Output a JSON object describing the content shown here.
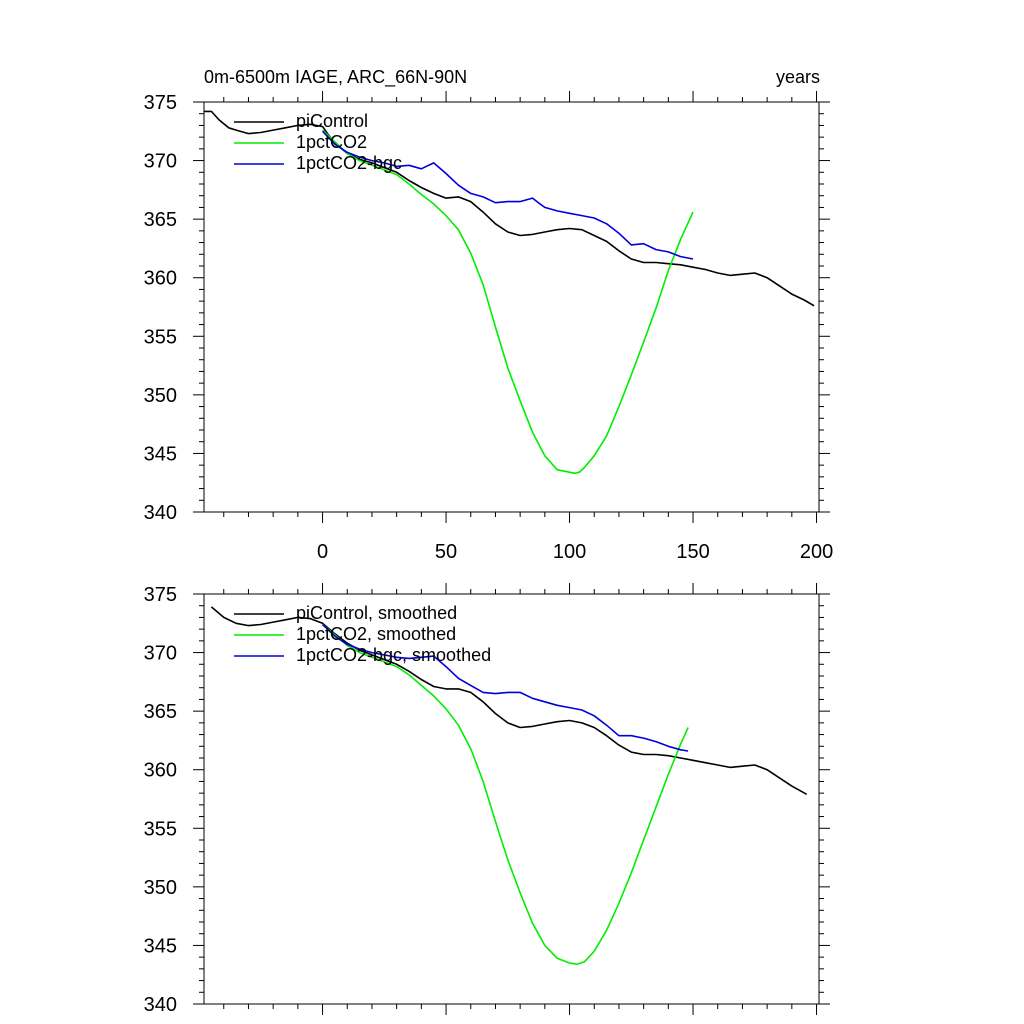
{
  "chart_data": [
    {
      "type": "line",
      "title": "0m-6500m IAGE, ARC_66N-90N",
      "title_right": "years",
      "xlim": [
        -48,
        201
      ],
      "ylim": [
        340,
        375
      ],
      "xticks": [
        0,
        50,
        100,
        150,
        200
      ],
      "xtick_labels": [
        "0",
        "50",
        "100",
        "150",
        "200"
      ],
      "yticks": [
        340,
        345,
        350,
        355,
        360,
        365,
        370,
        375
      ],
      "ytick_labels": [
        "340",
        "345",
        "350",
        "355",
        "360",
        "365",
        "370",
        "375"
      ],
      "grid": false,
      "legend_position": "top-left",
      "series": [
        {
          "name": "piControl",
          "color": "#000000",
          "x": [
            -48,
            -45,
            -42,
            -38,
            -35,
            -30,
            -25,
            -20,
            -15,
            -10,
            -5,
            0,
            2,
            5,
            10,
            15,
            20,
            25,
            30,
            35,
            40,
            45,
            50,
            55,
            60,
            65,
            70,
            75,
            80,
            85,
            90,
            95,
            100,
            105,
            110,
            115,
            120,
            125,
            130,
            135,
            140,
            145,
            150,
            155,
            160,
            165,
            170,
            175,
            180,
            185,
            190,
            195,
            199
          ],
          "y": [
            374.2,
            374.2,
            373.5,
            372.8,
            372.6,
            372.3,
            372.4,
            372.6,
            372.8,
            373.0,
            373.1,
            372.9,
            372.3,
            371.5,
            370.6,
            370.1,
            369.8,
            369.4,
            369.0,
            368.3,
            367.7,
            367.2,
            366.8,
            366.9,
            366.5,
            365.6,
            364.6,
            363.9,
            363.6,
            363.7,
            363.9,
            364.1,
            364.2,
            364.1,
            363.6,
            363.1,
            362.3,
            361.6,
            361.3,
            361.3,
            361.2,
            361.1,
            360.9,
            360.7,
            360.4,
            360.2,
            360.3,
            360.4,
            360.0,
            359.3,
            358.6,
            358.1,
            357.6
          ]
        },
        {
          "name": "1pctCO2",
          "color": "#00ee00",
          "x": [
            0,
            5,
            10,
            15,
            20,
            25,
            30,
            35,
            40,
            45,
            50,
            55,
            60,
            65,
            70,
            75,
            80,
            85,
            90,
            95,
            100,
            102,
            104,
            106,
            110,
            115,
            120,
            125,
            130,
            135,
            140,
            145,
            150
          ],
          "y": [
            372.6,
            371.6,
            370.6,
            370.0,
            369.6,
            369.2,
            368.8,
            368.0,
            367.1,
            366.3,
            365.3,
            364.1,
            362.1,
            359.4,
            355.8,
            352.3,
            349.5,
            346.8,
            344.8,
            343.6,
            343.4,
            343.3,
            343.4,
            343.8,
            344.8,
            346.5,
            349.0,
            351.7,
            354.5,
            357.4,
            360.6,
            363.3,
            365.6
          ]
        },
        {
          "name": "1pctCO2-bgc",
          "color": "#0000dd",
          "x": [
            0,
            5,
            10,
            15,
            20,
            25,
            30,
            35,
            40,
            45,
            50,
            55,
            60,
            65,
            70,
            75,
            80,
            85,
            88,
            90,
            95,
            100,
            105,
            110,
            115,
            120,
            125,
            130,
            135,
            140,
            145,
            150
          ],
          "y": [
            372.5,
            371.4,
            370.7,
            370.3,
            370.0,
            369.8,
            369.5,
            369.6,
            369.3,
            369.8,
            368.9,
            367.9,
            367.2,
            366.9,
            366.4,
            366.5,
            366.5,
            366.8,
            366.3,
            366.0,
            365.7,
            365.5,
            365.3,
            365.1,
            364.6,
            363.8,
            362.8,
            362.9,
            362.4,
            362.2,
            361.8,
            361.6
          ]
        }
      ]
    },
    {
      "type": "line",
      "xlim": [
        -48,
        201
      ],
      "ylim": [
        340,
        375
      ],
      "xticks": [
        0,
        50,
        100,
        150,
        200
      ],
      "yticks": [
        340,
        345,
        350,
        355,
        360,
        365,
        370,
        375
      ],
      "ytick_labels": [
        "340",
        "345",
        "350",
        "355",
        "360",
        "365",
        "370",
        "375"
      ],
      "grid": false,
      "legend_position": "top-left",
      "series": [
        {
          "name": "piControl, smoothed",
          "color": "#000000",
          "x": [
            -45,
            -40,
            -35,
            -30,
            -25,
            -20,
            -15,
            -10,
            -5,
            0,
            5,
            10,
            15,
            20,
            25,
            30,
            35,
            40,
            45,
            50,
            55,
            60,
            65,
            70,
            75,
            80,
            85,
            90,
            95,
            100,
            105,
            110,
            115,
            120,
            125,
            130,
            135,
            140,
            145,
            150,
            155,
            160,
            165,
            170,
            175,
            180,
            185,
            190,
            196
          ],
          "y": [
            373.9,
            373.0,
            372.5,
            372.3,
            372.4,
            372.6,
            372.8,
            373.0,
            372.9,
            372.5,
            371.6,
            370.8,
            370.2,
            369.8,
            369.4,
            369.0,
            368.4,
            367.7,
            367.1,
            366.9,
            366.9,
            366.6,
            365.8,
            364.8,
            364.0,
            363.6,
            363.7,
            363.9,
            364.1,
            364.2,
            364.0,
            363.6,
            362.9,
            362.1,
            361.5,
            361.3,
            361.3,
            361.2,
            361.0,
            360.8,
            360.6,
            360.4,
            360.2,
            360.3,
            360.4,
            360.0,
            359.3,
            358.6,
            357.9
          ]
        },
        {
          "name": "1pctCO2, smoothed",
          "color": "#00ee00",
          "x": [
            0,
            5,
            10,
            15,
            20,
            25,
            30,
            35,
            40,
            45,
            50,
            55,
            60,
            65,
            70,
            75,
            80,
            85,
            90,
            95,
            100,
            103,
            106,
            110,
            115,
            120,
            125,
            130,
            135,
            140,
            145,
            148
          ],
          "y": [
            372.4,
            371.5,
            370.6,
            370.0,
            369.6,
            369.2,
            368.8,
            368.1,
            367.2,
            366.3,
            365.2,
            363.8,
            361.8,
            359.0,
            355.6,
            352.3,
            349.5,
            346.9,
            345.0,
            343.9,
            343.5,
            343.4,
            343.6,
            344.5,
            346.3,
            348.6,
            351.2,
            354.0,
            356.8,
            359.6,
            362.2,
            363.6
          ]
        },
        {
          "name": "1pctCO2-bgc, smoothed",
          "color": "#0000dd",
          "x": [
            0,
            5,
            10,
            15,
            20,
            25,
            30,
            35,
            40,
            45,
            50,
            55,
            60,
            65,
            70,
            75,
            80,
            85,
            90,
            95,
            100,
            105,
            110,
            115,
            120,
            125,
            130,
            135,
            140,
            145,
            148
          ],
          "y": [
            372.4,
            371.4,
            370.7,
            370.3,
            370.0,
            369.8,
            369.6,
            369.5,
            369.6,
            369.7,
            368.8,
            367.8,
            367.2,
            366.6,
            366.5,
            366.6,
            366.6,
            366.1,
            365.8,
            365.5,
            365.3,
            365.1,
            364.6,
            363.8,
            362.9,
            362.9,
            362.7,
            362.4,
            362.0,
            361.7,
            361.6
          ]
        }
      ]
    }
  ]
}
